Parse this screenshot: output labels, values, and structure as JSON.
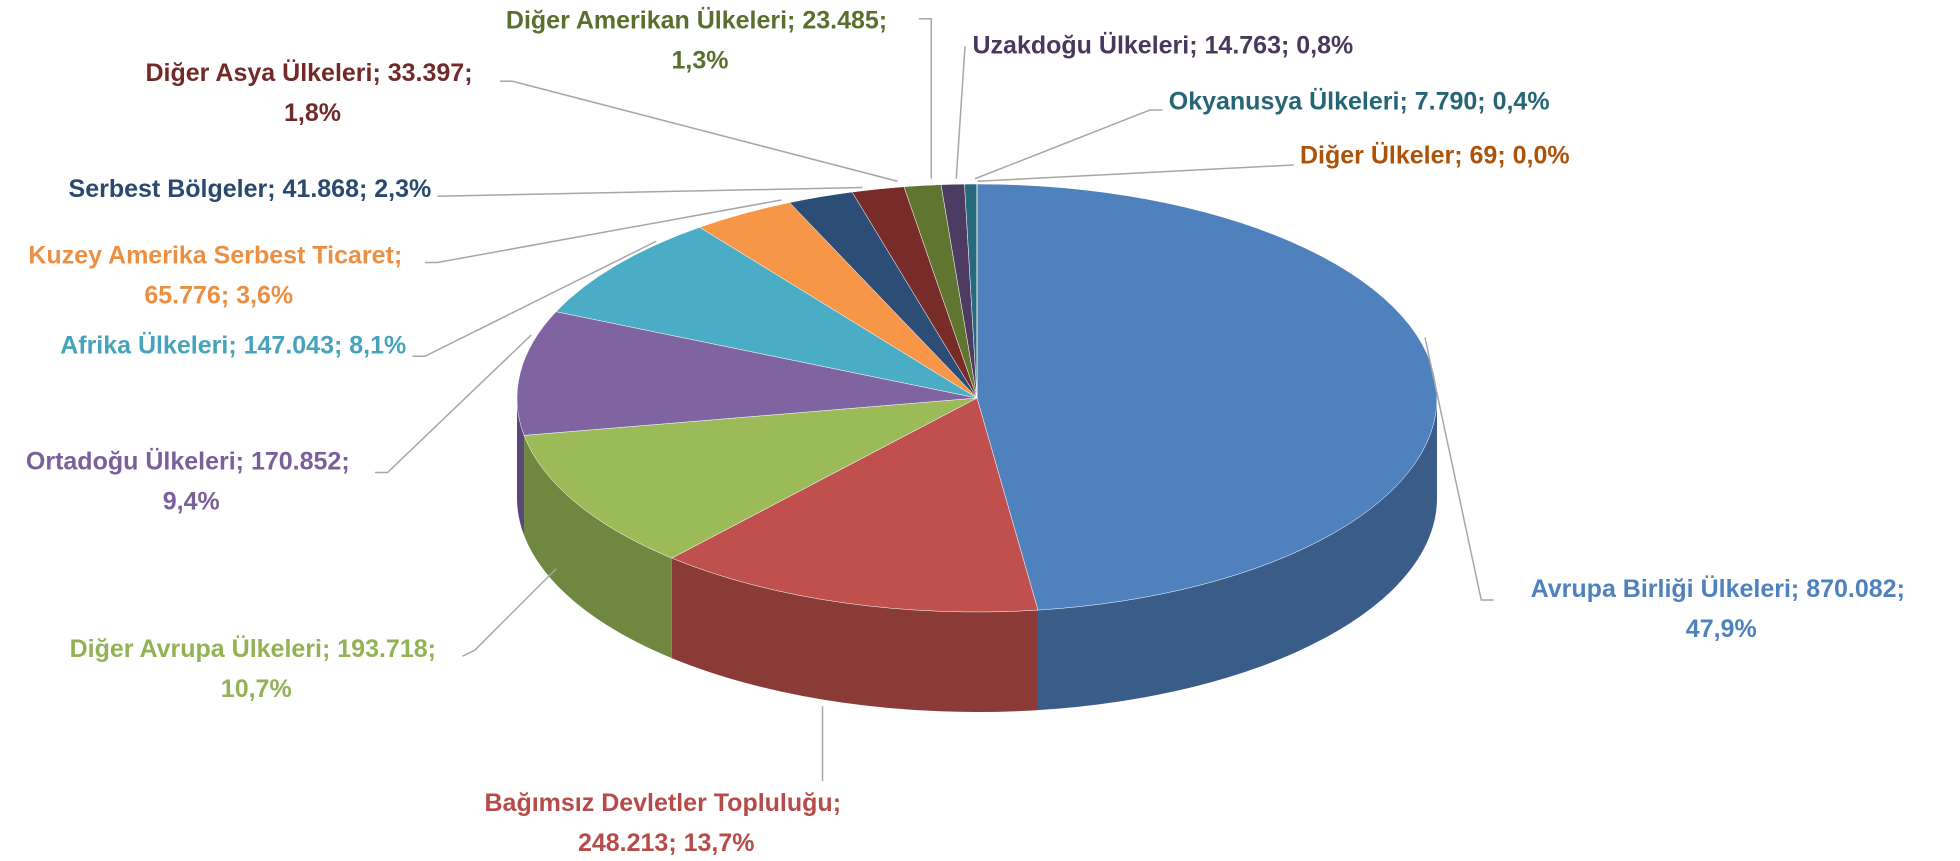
{
  "chart_data": {
    "type": "pie3d",
    "separator": "; ",
    "categories": [
      "Avrupa Birliği Ülkeleri",
      "Bağımsız Devletler Topluluğu",
      "Diğer Avrupa Ülkeleri",
      "Ortadoğu Ülkeleri",
      "Afrika Ülkeleri",
      "Kuzey Amerika Serbest Ticaret",
      "Serbest Bölgeler",
      "Diğer Asya Ülkeleri",
      "Diğer Amerikan Ülkeleri",
      "Uzakdoğu Ülkeleri",
      "Okyanusya Ülkeleri",
      "Diğer Ülkeler"
    ],
    "values": [
      870082,
      248213,
      193718,
      170852,
      147043,
      65776,
      41868,
      33397,
      23485,
      14763,
      7790,
      69
    ],
    "value_labels": [
      "870.082",
      "248.213",
      "193.718",
      "170.852",
      "147.043",
      "65.776",
      "41.868",
      "33.397",
      "23.485",
      "14.763",
      "7.790",
      "69"
    ],
    "percent_labels": [
      "47,9%",
      "13,7%",
      "10,7%",
      "9,4%",
      "8,1%",
      "3,6%",
      "2,3%",
      "1,8%",
      "1,3%",
      "0,8%",
      "0,4%",
      "0,0%"
    ],
    "colors": [
      "#4f81bd",
      "#c0504d",
      "#9bbb59",
      "#8064a2",
      "#4bacc6",
      "#f79646",
      "#2c4d75",
      "#772c2a",
      "#5f7530",
      "#4d3b62",
      "#276a7c",
      "#b65708"
    ]
  }
}
